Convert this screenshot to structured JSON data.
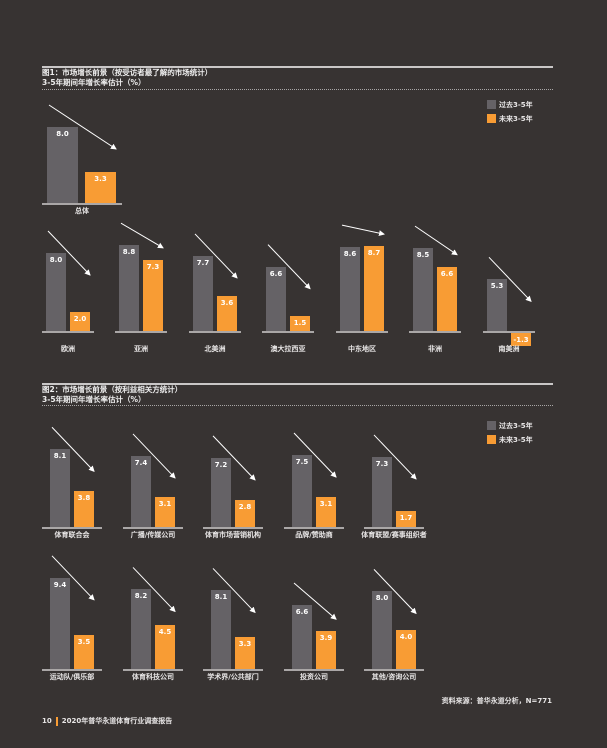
{
  "colors": {
    "background": "#373332",
    "past": "#656266",
    "future": "#f89c34"
  },
  "legend": {
    "past": "过去3-5年",
    "future": "未来3-5年"
  },
  "chart_data": [
    {
      "type": "bar",
      "title": "图1：市场增长前景（按受访者最了解的市场统计）",
      "subtitle": "3-5年期间年增长率估计（%）",
      "series_names": [
        "过去3-5年",
        "未来3-5年"
      ],
      "groups": [
        {
          "category": "总体",
          "past": 8.0,
          "future": 3.3
        },
        {
          "category": "欧洲",
          "past": 8.0,
          "future": 2.0
        },
        {
          "category": "亚洲",
          "past": 8.8,
          "future": 7.3
        },
        {
          "category": "北美洲",
          "past": 7.7,
          "future": 3.6
        },
        {
          "category": "澳大拉西亚",
          "past": 6.6,
          "future": 1.5
        },
        {
          "category": "中东地区",
          "past": 8.6,
          "future": 8.7
        },
        {
          "category": "非洲",
          "past": 8.5,
          "future": 6.6
        },
        {
          "category": "南美洲",
          "past": 5.3,
          "future": -1.3
        }
      ]
    },
    {
      "type": "bar",
      "title": "图2：市场增长前景（按利益相关方统计）",
      "subtitle": "3-5年期间年增长率估计（%）",
      "series_names": [
        "过去3-5年",
        "未来3-5年"
      ],
      "groups": [
        {
          "category": "体育联合会",
          "past": 8.1,
          "future": 3.8
        },
        {
          "category": "广播/传媒公司",
          "past": 7.4,
          "future": 3.1
        },
        {
          "category": "体育市场营销机构",
          "past": 7.2,
          "future": 2.8
        },
        {
          "category": "品牌/赞助商",
          "past": 7.5,
          "future": 3.1
        },
        {
          "category": "体育联盟/赛事组织者",
          "past": 7.3,
          "future": 1.7
        },
        {
          "category": "运动队/俱乐部",
          "past": 9.4,
          "future": 3.5
        },
        {
          "category": "体育科技公司",
          "past": 8.2,
          "future": 4.5
        },
        {
          "category": "学术界/公共部门",
          "past": 8.1,
          "future": 3.3
        },
        {
          "category": "投资公司",
          "past": 6.6,
          "future": 3.9
        },
        {
          "category": "其他/咨询公司",
          "past": 8.0,
          "future": 4.0
        }
      ]
    }
  ],
  "source": "资料来源：普华永道分析，N=771",
  "footer": {
    "page": "10",
    "report": "2020年普华永道体育行业调查报告"
  }
}
